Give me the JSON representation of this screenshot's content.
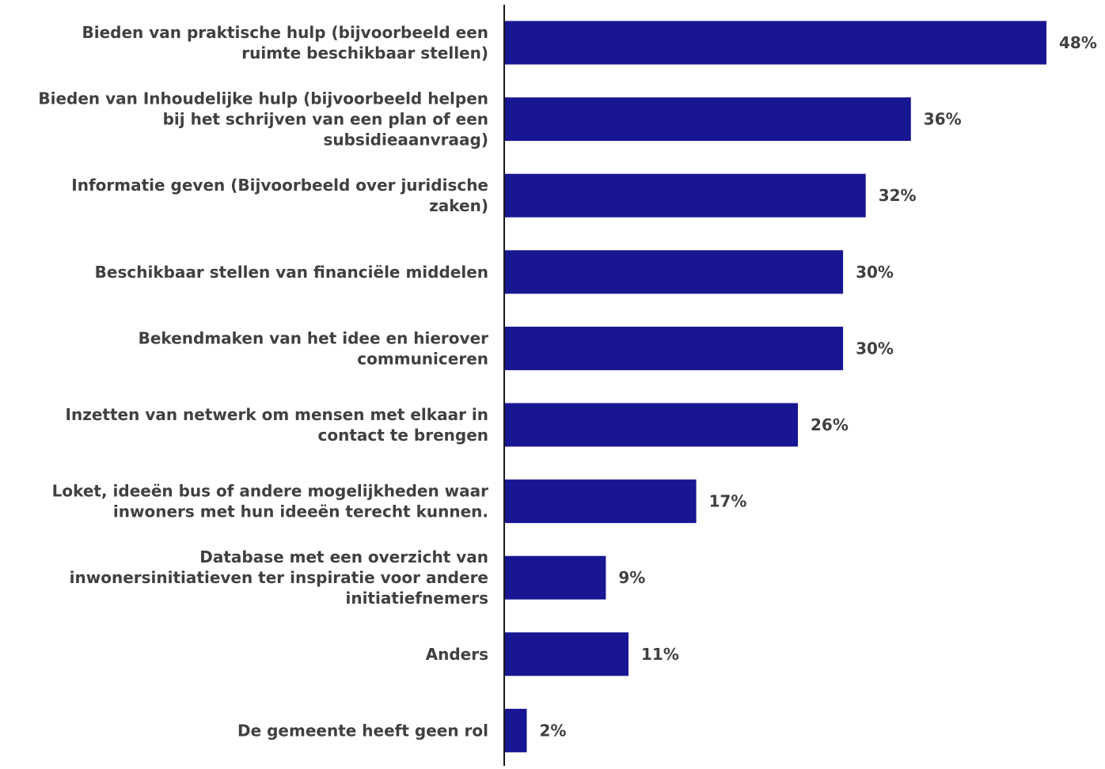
{
  "chart_data": {
    "type": "bar",
    "orientation": "horizontal",
    "title": "",
    "xlabel": "",
    "ylabel": "",
    "grid": false,
    "legend": "none",
    "value_suffix": "%",
    "xlim": [
      0,
      48
    ],
    "categories": [
      [
        "Bieden van praktische hulp (bijvoorbeeld een",
        "ruimte beschikbaar stellen)"
      ],
      [
        "Bieden van Inhoudelijke hulp (bijvoorbeeld helpen",
        "bij het schrijven van een plan of een",
        "subsidieaanvraag)"
      ],
      [
        "Informatie geven (Bijvoorbeeld over juridische",
        "zaken)"
      ],
      [
        "Beschikbaar stellen van financiële middelen"
      ],
      [
        "Bekendmaken van het idee en hierover",
        "communiceren"
      ],
      [
        "Inzetten van netwerk om mensen met elkaar in",
        "contact te brengen"
      ],
      [
        "Loket, ideeën bus of andere mogelijkheden waar",
        "inwoners met hun ideeën terecht kunnen."
      ],
      [
        "Database met een overzicht van",
        "inwonersinitiatieven ter inspiratie voor andere",
        "initiatiefnemers"
      ],
      [
        "Anders"
      ],
      [
        "De gemeente heeft geen rol"
      ]
    ],
    "values": [
      48,
      36,
      32,
      30,
      30,
      26,
      17,
      9,
      11,
      2
    ],
    "data_labels": [
      "48%",
      "36%",
      "32%",
      "30%",
      "30%",
      "26%",
      "17%",
      "9%",
      "11%",
      "2%"
    ],
    "colors": {
      "bar": "#191693",
      "label_text": "#404040",
      "axis": "#1a1a1a"
    }
  }
}
